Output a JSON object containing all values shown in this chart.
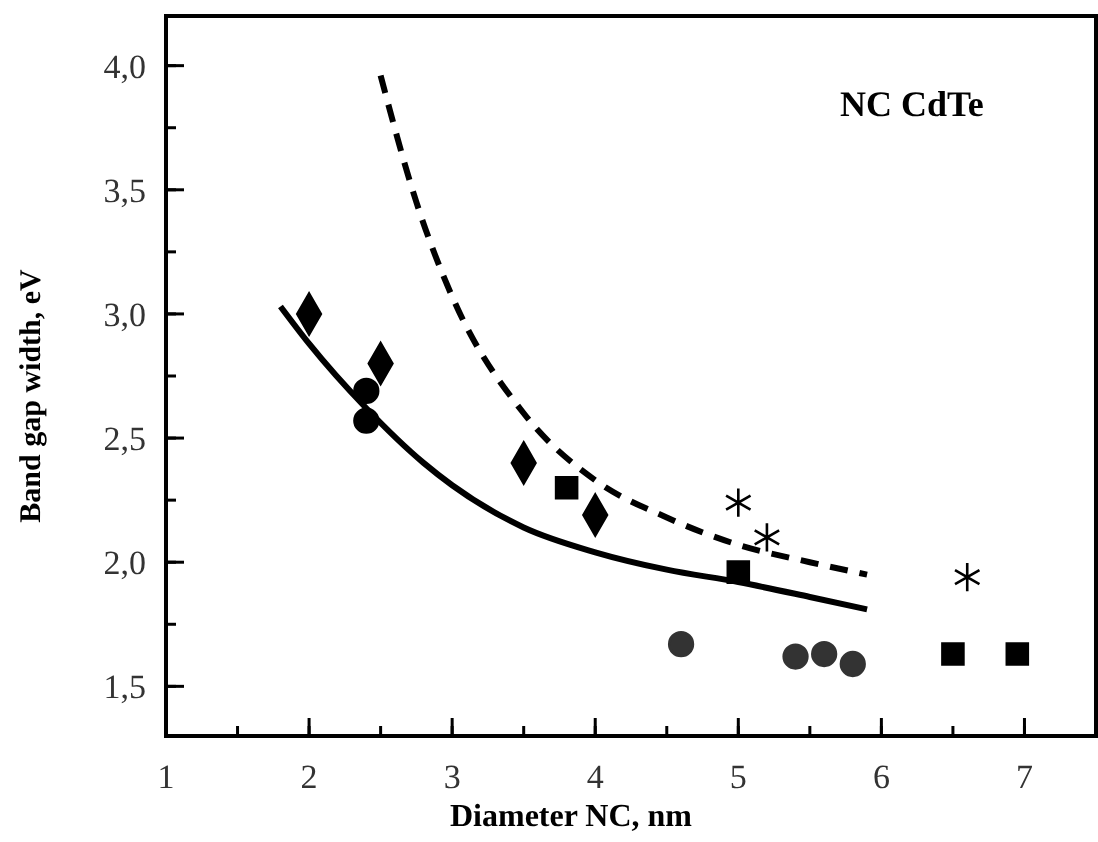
{
  "chart_data": {
    "type": "scatter",
    "xlabel": "Diameter NC, nm",
    "ylabel": "Band gap width, eV",
    "annotations": [
      "NC CdTe"
    ],
    "xlim": [
      1,
      7.5
    ],
    "xticks": [
      1,
      2,
      3,
      4,
      5,
      6,
      7
    ],
    "ylim": [
      1.3,
      4.2
    ],
    "yticks": [
      {
        "value": 1.5,
        "label": "1,5"
      },
      {
        "value": 2.0,
        "label": "2,0"
      },
      {
        "value": 2.5,
        "label": "2,5"
      },
      {
        "value": 3.0,
        "label": "3,0"
      },
      {
        "value": 3.5,
        "label": "3,5"
      },
      {
        "value": 4.0,
        "label": "4,0"
      }
    ],
    "grid": false,
    "series": [
      {
        "type": "line",
        "color": "#000000",
        "line_style": "solid",
        "marker": "none",
        "x": [
          1.8,
          2.0,
          2.4,
          2.8,
          3.0,
          3.5,
          4.0,
          4.5,
          5.0,
          5.5,
          5.9
        ],
        "values": [
          3.03,
          2.88,
          2.62,
          2.4,
          2.31,
          2.14,
          2.04,
          1.97,
          1.92,
          1.86,
          1.81
        ]
      },
      {
        "type": "line",
        "color": "#000000",
        "line_style": "dashed",
        "marker": "none",
        "x": [
          2.5,
          2.75,
          3.0,
          3.5,
          4.0,
          4.5,
          5.0,
          5.5,
          5.9
        ],
        "values": [
          3.96,
          3.45,
          3.07,
          2.6,
          2.33,
          2.18,
          2.07,
          2.0,
          1.95
        ]
      },
      {
        "color": "#000000",
        "marker": "diamond",
        "x": [
          2,
          2.5,
          3.5,
          4
        ],
        "values": [
          3.0,
          2.8,
          2.4,
          2.19
        ]
      },
      {
        "color": "#000000",
        "marker": "circle",
        "x": [
          2.4,
          2.4
        ],
        "values": [
          2.69,
          2.57
        ]
      },
      {
        "color": "#000000",
        "marker": "square",
        "x": [
          3.8,
          5,
          6.5,
          6.95
        ],
        "values": [
          2.3,
          1.96,
          1.63,
          1.63
        ]
      },
      {
        "color": "#000000",
        "marker": "cross",
        "x": [
          5,
          5.2,
          6.6
        ],
        "values": [
          2.24,
          2.1,
          1.94
        ]
      },
      {
        "color": "#333333",
        "marker": "circle",
        "x": [
          4.6,
          5.4,
          5.6,
          5.8
        ],
        "values": [
          1.67,
          1.62,
          1.63,
          1.59
        ]
      }
    ]
  }
}
